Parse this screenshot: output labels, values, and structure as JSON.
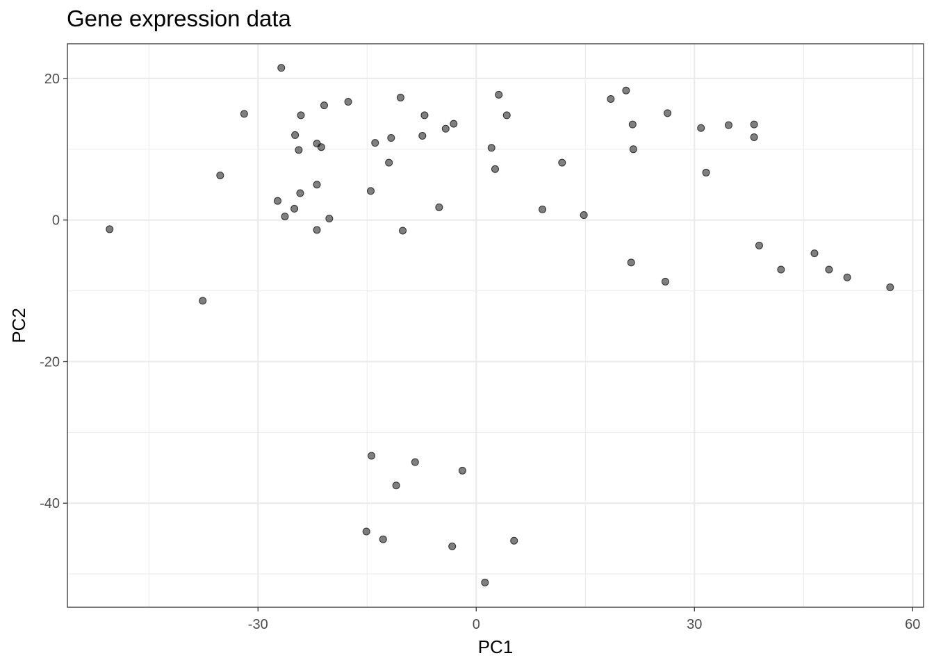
{
  "chart_data": {
    "type": "scatter",
    "title": "Gene expression data",
    "xlabel": "PC1",
    "ylabel": "PC2",
    "xlim": [
      -56.2,
      61.5
    ],
    "ylim": [
      -54.7,
      24.9
    ],
    "x_ticks": [
      -30,
      0,
      30,
      60
    ],
    "x_tick_labels": [
      "-30",
      "0",
      "30",
      "60"
    ],
    "y_ticks": [
      20,
      0,
      -20,
      -40
    ],
    "y_tick_labels": [
      "20",
      "0",
      "-20",
      "-40"
    ],
    "x_minor_ticks": [
      -45,
      -15,
      15,
      45
    ],
    "y_minor_ticks": [
      10,
      -10,
      -30,
      -50
    ],
    "grid": true,
    "legend": "none",
    "point_color": "#000000",
    "point_opacity": 0.5,
    "background": "#ffffff",
    "grid_color": "#ebebeb",
    "points": [
      {
        "x": -50.4,
        "y": -1.3
      },
      {
        "x": -37.6,
        "y": -11.4
      },
      {
        "x": -35.2,
        "y": 6.3
      },
      {
        "x": -31.9,
        "y": 15.0
      },
      {
        "x": -27.3,
        "y": 2.7
      },
      {
        "x": -26.8,
        "y": 21.5
      },
      {
        "x": -26.3,
        "y": 0.5
      },
      {
        "x": -25.0,
        "y": 1.6
      },
      {
        "x": -24.9,
        "y": 12.0
      },
      {
        "x": -24.4,
        "y": 9.9
      },
      {
        "x": -24.2,
        "y": 3.8
      },
      {
        "x": -24.1,
        "y": 14.8
      },
      {
        "x": -21.9,
        "y": 10.8
      },
      {
        "x": -21.9,
        "y": 5.0
      },
      {
        "x": -21.9,
        "y": -1.4
      },
      {
        "x": -21.3,
        "y": 10.3
      },
      {
        "x": -20.9,
        "y": 16.2
      },
      {
        "x": -20.2,
        "y": 0.2
      },
      {
        "x": -17.6,
        "y": 16.7
      },
      {
        "x": -15.1,
        "y": -44.0
      },
      {
        "x": -14.5,
        "y": 4.1
      },
      {
        "x": -14.4,
        "y": -33.3
      },
      {
        "x": -13.9,
        "y": 10.9
      },
      {
        "x": -12.8,
        "y": -45.1
      },
      {
        "x": -12.0,
        "y": 8.1
      },
      {
        "x": -11.7,
        "y": 11.6
      },
      {
        "x": -11.0,
        "y": -37.5
      },
      {
        "x": -10.4,
        "y": 17.3
      },
      {
        "x": -10.1,
        "y": -1.5
      },
      {
        "x": -8.4,
        "y": -34.2
      },
      {
        "x": -7.4,
        "y": 11.9
      },
      {
        "x": -7.1,
        "y": 14.8
      },
      {
        "x": -5.1,
        "y": 1.8
      },
      {
        "x": -4.2,
        "y": 12.9
      },
      {
        "x": -3.3,
        "y": -46.1
      },
      {
        "x": -3.1,
        "y": 13.6
      },
      {
        "x": -1.9,
        "y": -35.4
      },
      {
        "x": 1.2,
        "y": -51.2
      },
      {
        "x": 2.1,
        "y": 10.2
      },
      {
        "x": 2.6,
        "y": 7.2
      },
      {
        "x": 3.1,
        "y": 17.7
      },
      {
        "x": 4.2,
        "y": 14.8
      },
      {
        "x": 5.2,
        "y": -45.3
      },
      {
        "x": 9.1,
        "y": 1.5
      },
      {
        "x": 11.8,
        "y": 8.1
      },
      {
        "x": 14.8,
        "y": 0.7
      },
      {
        "x": 18.5,
        "y": 17.1
      },
      {
        "x": 20.6,
        "y": 18.3
      },
      {
        "x": 21.3,
        "y": -6.0
      },
      {
        "x": 21.5,
        "y": 13.5
      },
      {
        "x": 21.6,
        "y": 10.0
      },
      {
        "x": 26.0,
        "y": -8.7
      },
      {
        "x": 26.3,
        "y": 15.1
      },
      {
        "x": 30.9,
        "y": 13.0
      },
      {
        "x": 31.6,
        "y": 6.7
      },
      {
        "x": 34.7,
        "y": 13.4
      },
      {
        "x": 38.2,
        "y": 13.5
      },
      {
        "x": 38.2,
        "y": 11.7
      },
      {
        "x": 38.9,
        "y": -3.6
      },
      {
        "x": 41.9,
        "y": -7.0
      },
      {
        "x": 46.5,
        "y": -4.7
      },
      {
        "x": 48.5,
        "y": -7.0
      },
      {
        "x": 51.0,
        "y": -8.1
      },
      {
        "x": 56.9,
        "y": -9.5
      }
    ]
  }
}
